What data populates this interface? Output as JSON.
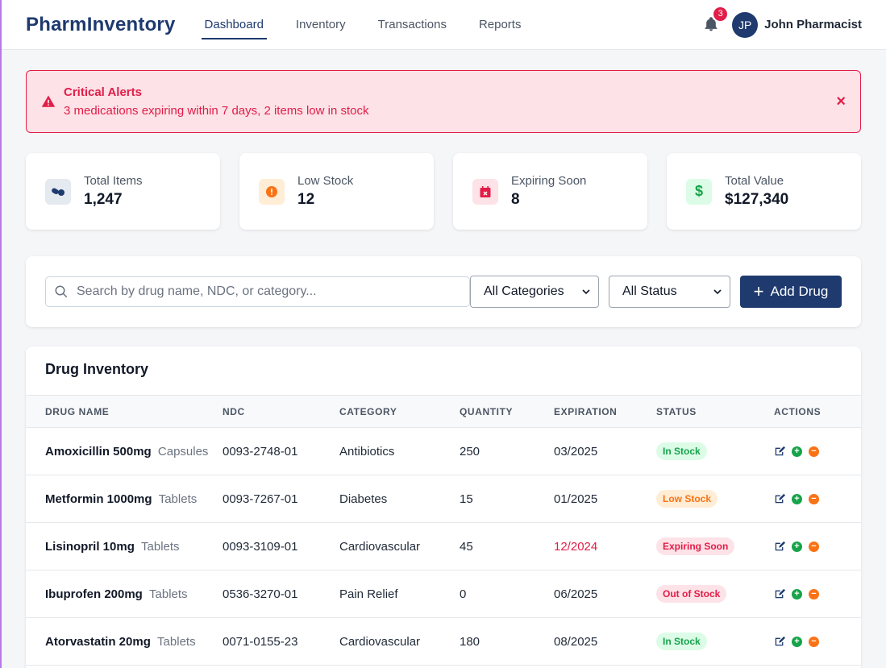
{
  "app": {
    "brand": "PharmInventory"
  },
  "nav": [
    {
      "label": "Dashboard",
      "active": true
    },
    {
      "label": "Inventory",
      "active": false
    },
    {
      "label": "Transactions",
      "active": false
    },
    {
      "label": "Reports",
      "active": false
    }
  ],
  "user": {
    "notifications": "3",
    "initials": "JP",
    "name": "John Pharmacist"
  },
  "alert": {
    "title": "Critical Alerts",
    "message": "3 medications expiring within 7 days, 2 items low in stock",
    "close": "×"
  },
  "stats": [
    {
      "label": "Total Items",
      "value": "1,247",
      "icon": "pills-icon",
      "color": "#1e3a6e"
    },
    {
      "label": "Low Stock",
      "value": "12",
      "icon": "exclamation-icon",
      "color": "#f97316"
    },
    {
      "label": "Expiring Soon",
      "value": "8",
      "icon": "calendar-x-icon",
      "color": "#e11d48"
    },
    {
      "label": "Total Value",
      "value": "$127,340",
      "icon": "dollar-icon",
      "color": "#16a34a"
    }
  ],
  "toolbar": {
    "search_placeholder": "Search by drug name, NDC, or category...",
    "category_selected": "All Categories",
    "status_selected": "All Status",
    "add_label": "Add Drug"
  },
  "table": {
    "title": "Drug Inventory",
    "headers": [
      "DRUG NAME",
      "NDC",
      "CATEGORY",
      "QUANTITY",
      "EXPIRATION",
      "STATUS",
      "ACTIONS"
    ],
    "rows": [
      {
        "name": "Amoxicillin 500mg",
        "form": "Capsules",
        "ndc": "0093-2748-01",
        "category": "Antibiotics",
        "quantity": "250",
        "expiration": "03/2025",
        "status": "In Stock",
        "status_type": "in",
        "exp_warn": false
      },
      {
        "name": "Metformin 1000mg",
        "form": "Tablets",
        "ndc": "0093-7267-01",
        "category": "Diabetes",
        "quantity": "15",
        "expiration": "01/2025",
        "status": "Low Stock",
        "status_type": "low",
        "exp_warn": false
      },
      {
        "name": "Lisinopril 10mg",
        "form": "Tablets",
        "ndc": "0093-3109-01",
        "category": "Cardiovascular",
        "quantity": "45",
        "expiration": "12/2024",
        "status": "Expiring Soon",
        "status_type": "exp",
        "exp_warn": true
      },
      {
        "name": "Ibuprofen 200mg",
        "form": "Tablets",
        "ndc": "0536-3270-01",
        "category": "Pain Relief",
        "quantity": "0",
        "expiration": "06/2025",
        "status": "Out of Stock",
        "status_type": "out",
        "exp_warn": false
      },
      {
        "name": "Atorvastatin 20mg",
        "form": "Tablets",
        "ndc": "0071-0155-23",
        "category": "Cardiovascular",
        "quantity": "180",
        "expiration": "08/2025",
        "status": "In Stock",
        "status_type": "in",
        "exp_warn": false
      }
    ]
  }
}
